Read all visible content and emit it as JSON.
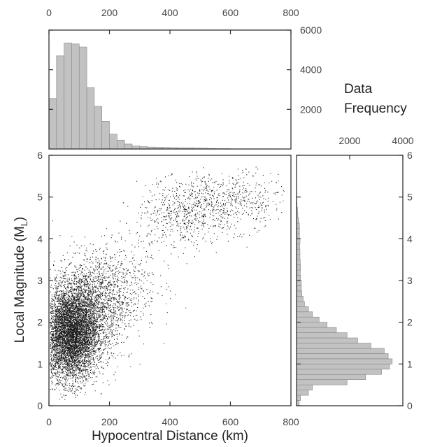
{
  "chart_data": [
    {
      "type": "scatter",
      "xlabel": "Hypocentral Distance (km)",
      "ylabel": "Local Magnitude (M",
      "ylabel_sub": "L",
      "ylabel_end": ")",
      "xlim": [
        0,
        800
      ],
      "ylim": [
        0,
        6
      ],
      "xticks": [
        "0",
        "200",
        "400",
        "600",
        "800"
      ],
      "yticks": [
        "0",
        "1",
        "2",
        "3",
        "4",
        "5",
        "6"
      ],
      "density_clusters": [
        {
          "x_center": 70,
          "x_spread": 45,
          "y_center": 1.7,
          "y_spread": 0.55,
          "weight": 0.62
        },
        {
          "x_center": 130,
          "x_spread": 60,
          "y_center": 2.3,
          "y_spread": 0.6,
          "weight": 0.2
        },
        {
          "x_center": 220,
          "x_spread": 70,
          "y_center": 2.9,
          "y_spread": 0.55,
          "weight": 0.06
        },
        {
          "x_center": 430,
          "x_spread": 70,
          "y_center": 4.5,
          "y_spread": 0.4,
          "weight": 0.05
        },
        {
          "x_center": 580,
          "x_spread": 100,
          "y_center": 4.9,
          "y_spread": 0.35,
          "weight": 0.07
        }
      ]
    },
    {
      "type": "bar",
      "orientation": "vertical",
      "title": "Data Frequency",
      "title_line1": "Data",
      "title_line2": "Frequency",
      "xlim": [
        0,
        800
      ],
      "ylim": [
        0,
        6000
      ],
      "xticks": [
        "0",
        "200",
        "400",
        "600",
        "800"
      ],
      "yticks": [
        "2000",
        "4000",
        "6000"
      ],
      "bin_width_km": 25,
      "values": [
        2550,
        4700,
        5350,
        5300,
        5150,
        3100,
        2150,
        1400,
        750,
        450,
        250,
        150,
        120,
        100,
        90,
        80,
        70,
        60,
        60,
        50,
        40,
        30,
        20,
        20,
        10,
        10,
        10,
        10,
        10,
        10,
        5,
        5
      ]
    },
    {
      "type": "bar",
      "orientation": "horizontal",
      "xlim": [
        0,
        4000
      ],
      "ylim": [
        0,
        6
      ],
      "xticks": [
        "2000",
        "4000"
      ],
      "yticks": [
        "0",
        "1",
        "2",
        "3",
        "4",
        "5",
        "6"
      ],
      "bin_width_ml": 0.125,
      "values": [
        100,
        150,
        450,
        600,
        1900,
        2600,
        3200,
        3500,
        3600,
        3450,
        3300,
        2800,
        2300,
        1900,
        1500,
        1150,
        850,
        600,
        450,
        300,
        250,
        200,
        180,
        180,
        150,
        140,
        150,
        140,
        130,
        130,
        120,
        130,
        110,
        110,
        110,
        80,
        50,
        40,
        20,
        10,
        10,
        5,
        5,
        5,
        5,
        0,
        0,
        0
      ]
    }
  ]
}
